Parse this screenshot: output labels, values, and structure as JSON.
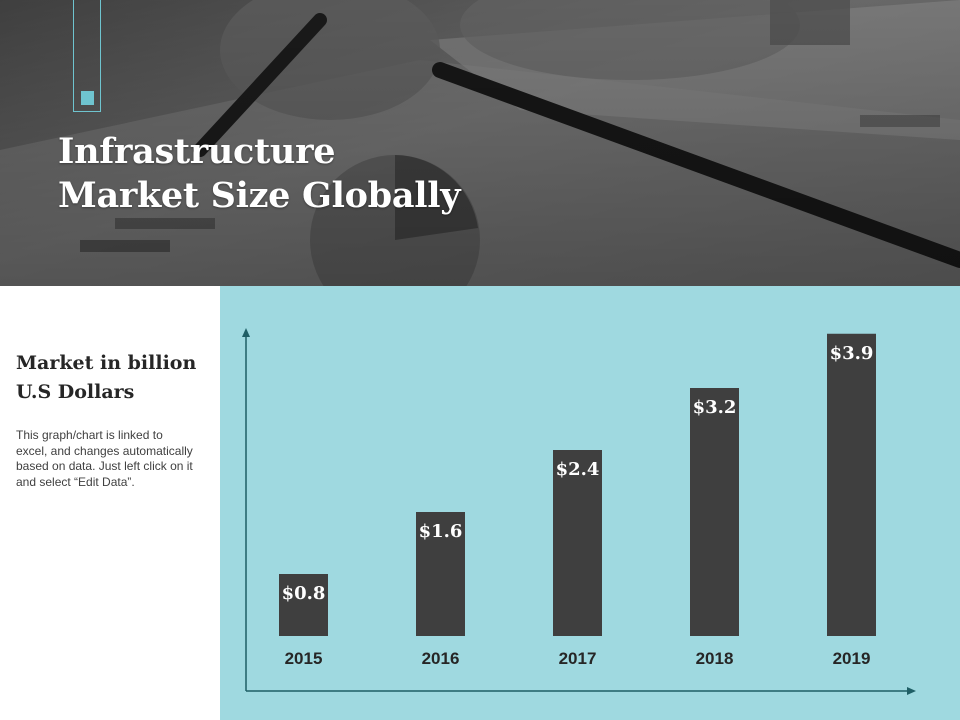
{
  "hero": {
    "title_line1": "Infrastructure",
    "title_line2": "Market Size Globally"
  },
  "sidebar": {
    "heading_line1": "Market in billion",
    "heading_line2": "U.S Dollars",
    "note": "This graph/chart is linked to excel, and changes automatically based on data. Just left click on it and select “Edit Data”."
  },
  "colors": {
    "accent": "#6fc4cf",
    "panel": "#9fd9e0",
    "bar": "#3f3f3f",
    "axis": "#1f5f66"
  },
  "chart_data": {
    "type": "bar",
    "title": "",
    "xlabel": "",
    "ylabel": "Market in billion U.S Dollars",
    "categories": [
      "2015",
      "2016",
      "2017",
      "2018",
      "2019"
    ],
    "values": [
      0.8,
      1.6,
      2.4,
      3.2,
      3.9
    ],
    "data_labels": [
      "$0.8",
      "$1.6",
      "$2.4",
      "$3.2",
      "$3.9"
    ],
    "ylim": [
      0,
      4
    ],
    "grid": false,
    "legend": "none"
  }
}
